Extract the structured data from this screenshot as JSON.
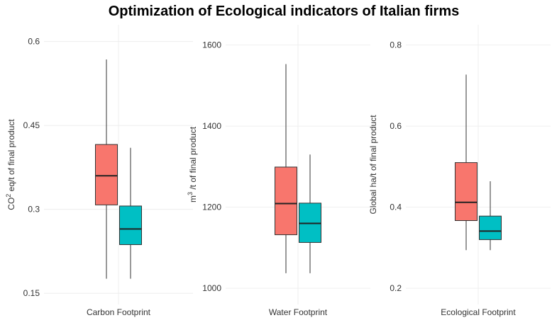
{
  "title": "Optimization of Ecological indicators of Italian firms",
  "chart_data": [
    {
      "type": "box",
      "categories": [
        "Carbon Footprint"
      ],
      "y_label": [
        "CO",
        "2",
        " eq/t of final product"
      ],
      "ylim": [
        0.13,
        0.63
      ],
      "yticks": [
        0.15,
        0.3,
        0.45,
        0.6
      ],
      "grid": true,
      "series": [
        {
          "color": "#F8766D",
          "min": [
            0.176
          ],
          "q1": [
            0.308
          ],
          "median": [
            0.36
          ],
          "q3": [
            0.416
          ],
          "max": [
            0.568
          ]
        },
        {
          "color": "#00BFC4",
          "min": [
            0.176
          ],
          "q1": [
            0.237
          ],
          "median": [
            0.265
          ],
          "q3": [
            0.306
          ],
          "max": [
            0.41
          ]
        }
      ]
    },
    {
      "type": "box",
      "categories": [
        "Water Footprint"
      ],
      "y_label": [
        "m",
        "3",
        " /t of final product"
      ],
      "ylim": [
        960,
        1650
      ],
      "yticks": [
        1000,
        1200,
        1400,
        1600
      ],
      "grid": true,
      "series": [
        {
          "color": "#F8766D",
          "min": [
            1037
          ],
          "q1": [
            1132
          ],
          "median": [
            1209
          ],
          "q3": [
            1299
          ],
          "max": [
            1553
          ]
        },
        {
          "color": "#00BFC4",
          "min": [
            1037
          ],
          "q1": [
            1113
          ],
          "median": [
            1160
          ],
          "q3": [
            1210
          ],
          "max": [
            1330
          ]
        }
      ]
    },
    {
      "type": "box",
      "categories": [
        "Ecological Footprint"
      ],
      "y_label": [
        "Global ha/t of final product"
      ],
      "ylim": [
        0.16,
        0.85
      ],
      "yticks": [
        0.2,
        0.4,
        0.6,
        0.8
      ],
      "grid": true,
      "series": [
        {
          "color": "#F8766D",
          "min": [
            0.294
          ],
          "q1": [
            0.367
          ],
          "median": [
            0.412
          ],
          "q3": [
            0.51
          ],
          "max": [
            0.727
          ]
        },
        {
          "color": "#00BFC4",
          "min": [
            0.294
          ],
          "q1": [
            0.32
          ],
          "median": [
            0.341
          ],
          "q3": [
            0.378
          ],
          "max": [
            0.464
          ]
        }
      ]
    }
  ]
}
